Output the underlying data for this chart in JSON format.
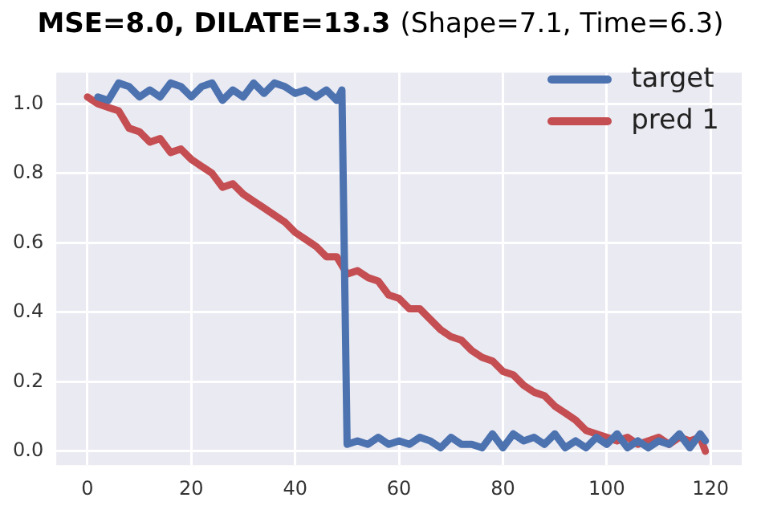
{
  "chart_data": {
    "type": "line",
    "title": "MSE=8.0, DILATE=13.3",
    "subtitle": "(Shape=7.1, Time=6.3)",
    "xlim": [
      -6,
      126
    ],
    "xticks": [
      0,
      20,
      40,
      60,
      80,
      100,
      120
    ],
    "ylim": [
      -0.04,
      1.09
    ],
    "yticks": [
      {
        "value": 0,
        "label": "0.0"
      },
      0.2,
      0.4,
      0.6,
      0.8,
      {
        "value": 1,
        "label": "1.0"
      }
    ],
    "grid": true,
    "legend": "top right",
    "marker": "none",
    "line_style": "solid",
    "series": [
      {
        "name": "target",
        "color": "#4c72b0",
        "x": [
          2,
          4,
          6,
          8,
          10,
          12,
          14,
          16,
          18,
          20,
          22,
          24,
          26,
          28,
          30,
          32,
          34,
          36,
          38,
          40,
          42,
          44,
          46,
          48,
          49,
          50,
          52,
          54,
          56,
          58,
          60,
          62,
          64,
          66,
          68,
          70,
          72,
          74,
          76,
          78,
          80,
          82,
          84,
          86,
          88,
          90,
          92,
          94,
          96,
          98,
          100,
          102,
          104,
          106,
          108,
          110,
          112,
          114,
          116,
          118,
          119
        ],
        "values": [
          1.02,
          1.01,
          1.06,
          1.05,
          1.02,
          1.04,
          1.02,
          1.06,
          1.05,
          1.02,
          1.05,
          1.06,
          1.01,
          1.04,
          1.02,
          1.06,
          1.03,
          1.06,
          1.05,
          1.03,
          1.04,
          1.02,
          1.04,
          1.01,
          1.04,
          0.02,
          0.03,
          0.02,
          0.04,
          0.02,
          0.03,
          0.02,
          0.04,
          0.03,
          0.01,
          0.04,
          0.02,
          0.02,
          0.01,
          0.05,
          0.01,
          0.05,
          0.03,
          0.04,
          0.02,
          0.05,
          0.01,
          0.03,
          0.01,
          0.04,
          0.02,
          0.05,
          0.01,
          0.03,
          0.01,
          0.03,
          0.02,
          0.05,
          0.01,
          0.05,
          0.03
        ]
      },
      {
        "name": "pred 1",
        "color": "#c44e52",
        "x": [
          0,
          2,
          4,
          6,
          8,
          10,
          12,
          14,
          16,
          18,
          20,
          22,
          24,
          26,
          28,
          30,
          32,
          34,
          36,
          38,
          40,
          42,
          44,
          46,
          48,
          50,
          52,
          54,
          56,
          58,
          60,
          62,
          64,
          66,
          68,
          70,
          72,
          74,
          76,
          78,
          80,
          82,
          84,
          86,
          88,
          90,
          92,
          94,
          96,
          98,
          100,
          102,
          104,
          106,
          108,
          110,
          112,
          114,
          116,
          118,
          119
        ],
        "values": [
          1.02,
          1.0,
          0.99,
          0.98,
          0.93,
          0.92,
          0.89,
          0.9,
          0.86,
          0.87,
          0.84,
          0.82,
          0.8,
          0.76,
          0.77,
          0.74,
          0.72,
          0.7,
          0.68,
          0.66,
          0.63,
          0.61,
          0.59,
          0.56,
          0.56,
          0.51,
          0.52,
          0.5,
          0.49,
          0.45,
          0.44,
          0.41,
          0.41,
          0.38,
          0.35,
          0.33,
          0.32,
          0.29,
          0.27,
          0.26,
          0.23,
          0.22,
          0.19,
          0.17,
          0.16,
          0.13,
          0.11,
          0.09,
          0.06,
          0.05,
          0.04,
          0.03,
          0.04,
          0.02,
          0.03,
          0.04,
          0.02,
          0.04,
          0.03,
          0.04,
          0.0
        ]
      }
    ]
  }
}
